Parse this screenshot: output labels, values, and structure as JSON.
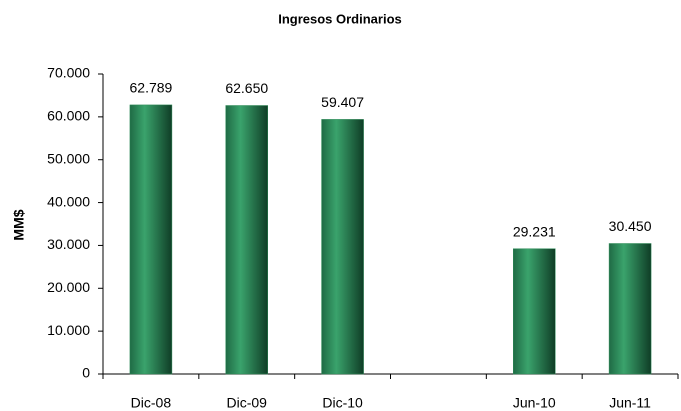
{
  "chart_data": {
    "type": "bar",
    "title": "Ingresos Ordinarios",
    "y_label": "MM$",
    "categories": [
      "Dic-08",
      "Dic-09",
      "Dic-10",
      null,
      "Jun-10",
      "Jun-11"
    ],
    "values": [
      62789,
      62650,
      59407,
      null,
      29231,
      30450
    ],
    "value_labels": [
      "62.789",
      "62.650",
      "59.407",
      null,
      "29.231",
      "30.450"
    ],
    "color": "#2e8b57",
    "ylim": [
      0,
      70000
    ],
    "yticks": [
      0,
      {
        "value": 10000,
        "label": "10.000"
      },
      {
        "value": 20000,
        "label": "20.000"
      },
      {
        "value": 30000,
        "label": "30.000"
      },
      {
        "value": 40000,
        "label": "40.000"
      },
      {
        "value": 50000,
        "label": "50.000"
      },
      {
        "value": 60000,
        "label": "60.000"
      },
      {
        "value": 70000,
        "label": "70.000"
      }
    ],
    "grid": false
  }
}
